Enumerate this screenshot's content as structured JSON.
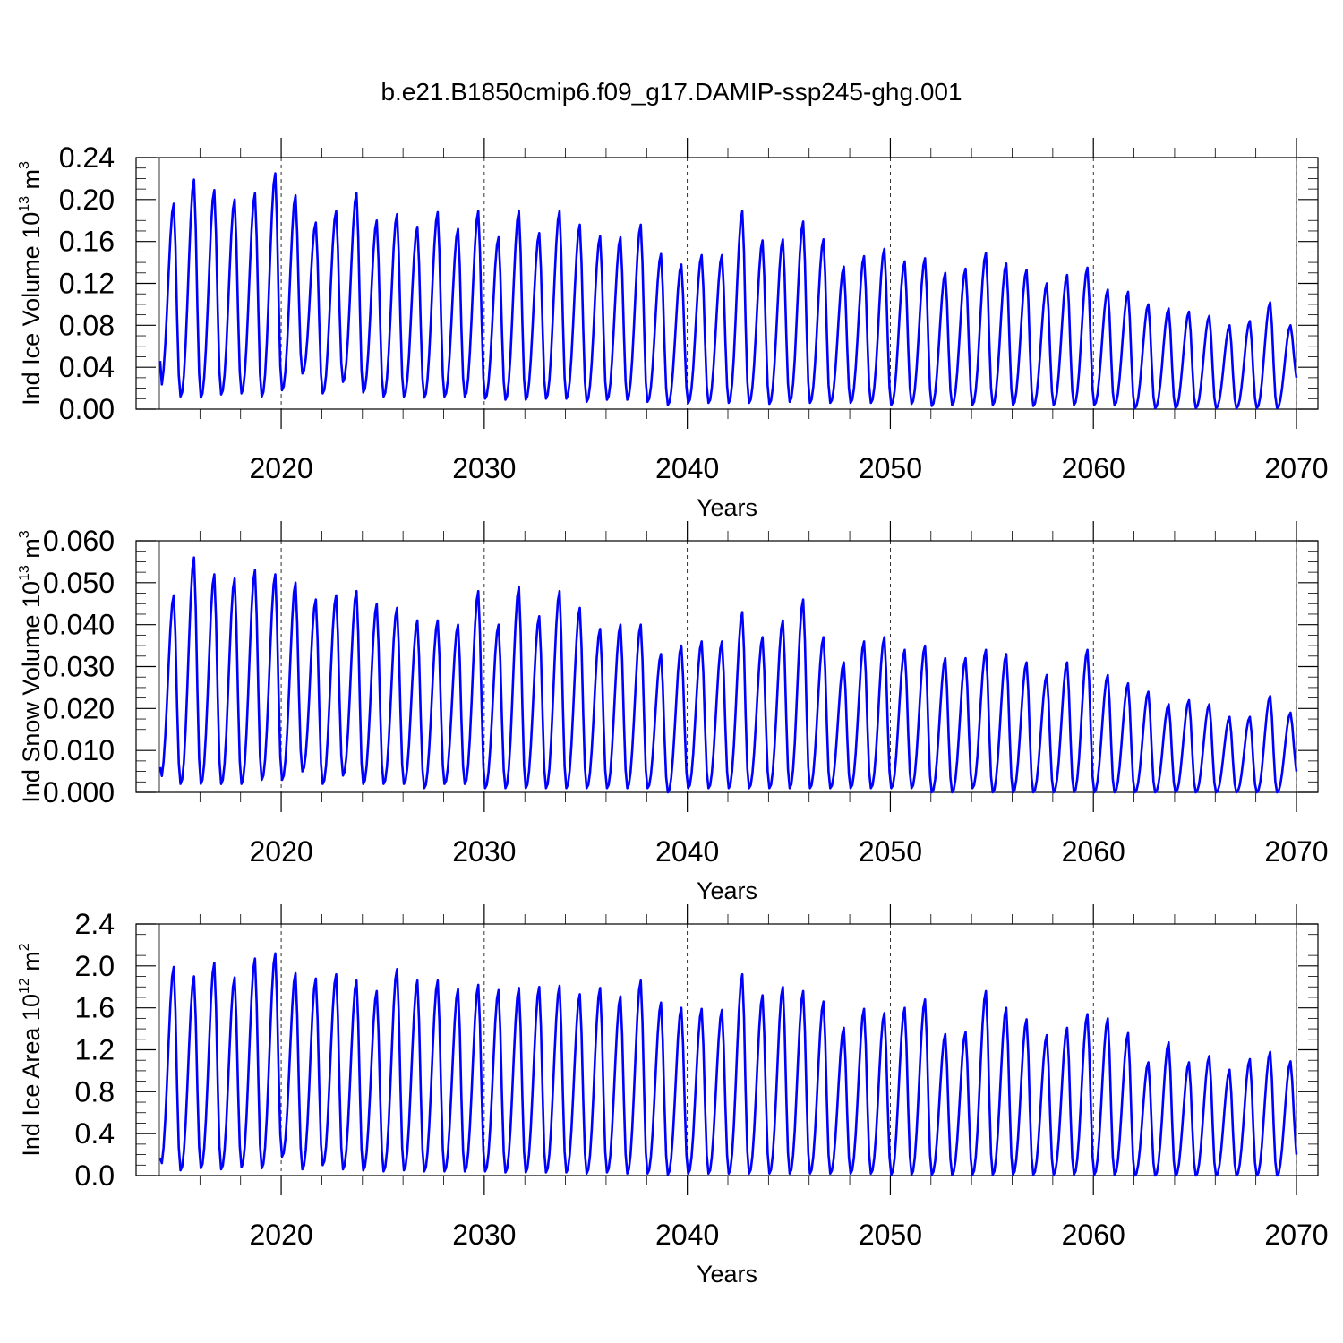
{
  "figure": {
    "title": "b.e21.B1850cmip6.f09_g17.DAMIP-ssp245-ghg.001",
    "line_color": "#0000ff"
  },
  "chart_data": [
    {
      "type": "line",
      "name": "ind-ice-volume",
      "title": "",
      "xlabel": "Years",
      "ylabel_text": "Ind Ice Volume 10",
      "ylabel_exp": "13",
      "ylabel_unit": " m",
      "ylabel_unit_exp": "3",
      "xlim": [
        2014,
        2070
      ],
      "ylim": [
        0,
        0.24
      ],
      "x_ticks": [
        2020,
        2030,
        2040,
        2050,
        2060,
        2070
      ],
      "x_tick_labels": [
        "2020",
        "2030",
        "2040",
        "2050",
        "2060",
        "2070"
      ],
      "y_ticks": [
        0,
        0.04,
        0.08,
        0.12,
        0.16,
        0.2,
        0.24
      ],
      "y_tick_labels": [
        "0.00",
        "0.04",
        "0.08",
        "0.12",
        "0.16",
        "0.20",
        "0.24"
      ],
      "start_year": 2014,
      "first_value": 0.046,
      "peak_month": 8,
      "annual_peaks": [
        0.196,
        0.219,
        0.209,
        0.2,
        0.206,
        0.225,
        0.204,
        0.178,
        0.189,
        0.206,
        0.18,
        0.186,
        0.174,
        0.188,
        0.172,
        0.189,
        0.164,
        0.189,
        0.168,
        0.189,
        0.176,
        0.165,
        0.164,
        0.176,
        0.148,
        0.138,
        0.147,
        0.147,
        0.189,
        0.161,
        0.162,
        0.179,
        0.162,
        0.136,
        0.146,
        0.153,
        0.141,
        0.144,
        0.13,
        0.134,
        0.149,
        0.139,
        0.133,
        0.12,
        0.128,
        0.135,
        0.114,
        0.112,
        0.1,
        0.096,
        0.093,
        0.089,
        0.08,
        0.084,
        0.102,
        0.08
      ],
      "annual_mins": [
        0.02,
        0.012,
        0.011,
        0.014,
        0.015,
        0.012,
        0.018,
        0.034,
        0.015,
        0.026,
        0.016,
        0.012,
        0.012,
        0.011,
        0.012,
        0.012,
        0.01,
        0.009,
        0.009,
        0.01,
        0.01,
        0.007,
        0.009,
        0.009,
        0.007,
        0.004,
        0.006,
        0.006,
        0.006,
        0.006,
        0.005,
        0.007,
        0.006,
        0.006,
        0.006,
        0.006,
        0.004,
        0.005,
        0.003,
        0.004,
        0.004,
        0.004,
        0.004,
        0.003,
        0.004,
        0.004,
        0.004,
        0.004,
        0.001,
        0.001,
        0.001,
        0.001,
        0.001,
        0.001,
        0.001,
        0.001
      ],
      "last_value": 0.03
    },
    {
      "type": "line",
      "name": "ind-snow-volume",
      "title": "",
      "xlabel": "Years",
      "ylabel_text": "Ind Snow Volume 10",
      "ylabel_exp": "13",
      "ylabel_unit": " m",
      "ylabel_unit_exp": "3",
      "xlim": [
        2014,
        2070
      ],
      "ylim": [
        0,
        0.06
      ],
      "x_ticks": [
        2020,
        2030,
        2040,
        2050,
        2060,
        2070
      ],
      "x_tick_labels": [
        "2020",
        "2030",
        "2040",
        "2050",
        "2060",
        "2070"
      ],
      "y_ticks": [
        0,
        0.01,
        0.02,
        0.03,
        0.04,
        0.05,
        0.06
      ],
      "y_tick_labels": [
        "0.000",
        "0.010",
        "0.020",
        "0.030",
        "0.040",
        "0.050",
        "0.060"
      ],
      "start_year": 2014,
      "first_value": 0.006,
      "peak_month": 8,
      "annual_peaks": [
        0.047,
        0.056,
        0.052,
        0.051,
        0.053,
        0.052,
        0.05,
        0.046,
        0.047,
        0.048,
        0.045,
        0.044,
        0.041,
        0.041,
        0.04,
        0.048,
        0.04,
        0.049,
        0.042,
        0.048,
        0.044,
        0.039,
        0.04,
        0.04,
        0.033,
        0.035,
        0.036,
        0.036,
        0.043,
        0.037,
        0.041,
        0.046,
        0.037,
        0.031,
        0.036,
        0.037,
        0.034,
        0.035,
        0.032,
        0.032,
        0.034,
        0.033,
        0.031,
        0.028,
        0.031,
        0.034,
        0.028,
        0.026,
        0.024,
        0.021,
        0.022,
        0.021,
        0.018,
        0.018,
        0.023,
        0.019
      ],
      "annual_mins": [
        0.003,
        0.002,
        0.002,
        0.002,
        0.002,
        0.003,
        0.003,
        0.005,
        0.002,
        0.004,
        0.002,
        0.002,
        0.002,
        0.001,
        0.002,
        0.002,
        0.001,
        0.001,
        0.001,
        0.001,
        0.001,
        0.001,
        0.001,
        0.001,
        0.001,
        0.0,
        0.001,
        0.001,
        0.001,
        0.001,
        0.001,
        0.001,
        0.001,
        0.001,
        0.001,
        0.001,
        0.001,
        0.001,
        0.0,
        0.0,
        0.001,
        0.0,
        0.0,
        0.0,
        0.0,
        0.0,
        0.0,
        0.0,
        0.0,
        0.0,
        0.0,
        0.0,
        0.0,
        0.0,
        0.0,
        0.0
      ],
      "last_value": 0.005
    },
    {
      "type": "line",
      "name": "ind-ice-area",
      "title": "",
      "xlabel": "Years",
      "ylabel_text": "Ind Ice Area 10",
      "ylabel_exp": "12",
      "ylabel_unit": " m",
      "ylabel_unit_exp": "2",
      "xlim": [
        2014,
        2070
      ],
      "ylim": [
        0,
        2.4
      ],
      "x_ticks": [
        2020,
        2030,
        2040,
        2050,
        2060,
        2070
      ],
      "x_tick_labels": [
        "2020",
        "2030",
        "2040",
        "2050",
        "2060",
        "2070"
      ],
      "y_ticks": [
        0,
        0.4,
        0.8,
        1.2,
        1.6,
        2.0,
        2.4
      ],
      "y_tick_labels": [
        "0.0",
        "0.4",
        "0.8",
        "1.2",
        "1.6",
        "2.0",
        "2.4"
      ],
      "start_year": 2014,
      "first_value": 0.17,
      "peak_month": 8,
      "annual_peaks": [
        1.99,
        1.9,
        2.03,
        1.89,
        2.07,
        2.12,
        1.93,
        1.88,
        1.92,
        1.86,
        1.76,
        1.97,
        1.86,
        1.86,
        1.78,
        1.82,
        1.77,
        1.79,
        1.8,
        1.81,
        1.73,
        1.79,
        1.71,
        1.86,
        1.65,
        1.6,
        1.59,
        1.58,
        1.92,
        1.72,
        1.8,
        1.76,
        1.66,
        1.41,
        1.59,
        1.55,
        1.6,
        1.68,
        1.35,
        1.37,
        1.76,
        1.6,
        1.49,
        1.34,
        1.41,
        1.54,
        1.5,
        1.36,
        1.08,
        1.27,
        1.08,
        1.14,
        1.01,
        1.11,
        1.18,
        1.09
      ],
      "annual_mins": [
        0.08,
        0.05,
        0.07,
        0.06,
        0.08,
        0.07,
        0.18,
        0.06,
        0.1,
        0.06,
        0.05,
        0.04,
        0.05,
        0.04,
        0.04,
        0.04,
        0.04,
        0.03,
        0.03,
        0.03,
        0.03,
        0.02,
        0.03,
        0.02,
        0.02,
        0.01,
        0.02,
        0.02,
        0.02,
        0.02,
        0.02,
        0.02,
        0.02,
        0.02,
        0.02,
        0.02,
        0.01,
        0.01,
        0.01,
        0.01,
        0.01,
        0.01,
        0.01,
        0.01,
        0.01,
        0.01,
        0.01,
        0.01,
        0.0,
        0.0,
        0.0,
        0.0,
        0.0,
        0.0,
        0.0,
        0.0
      ],
      "last_value": 0.2
    }
  ]
}
